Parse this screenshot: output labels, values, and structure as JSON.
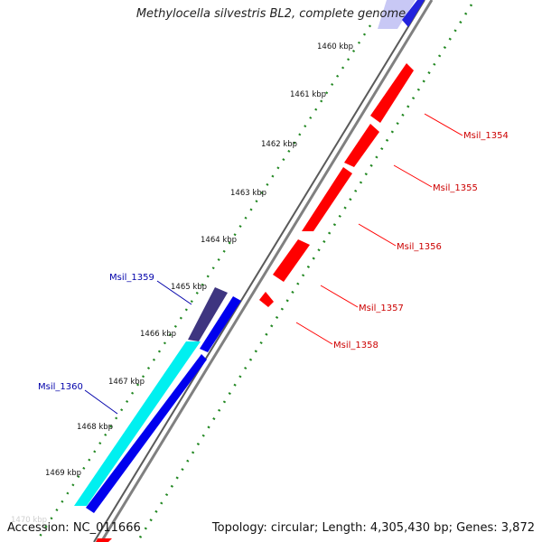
{
  "title": "Methylocella silvestris BL2, complete genome",
  "footer": {
    "accession": "Accession: NC_011666",
    "summary": "Topology: circular; Length: 4,305,430 bp; Genes: 3,872"
  },
  "colors": {
    "forward": "#ff0000",
    "reverse": "#0000ee",
    "highlight_dark": "#3e3580",
    "highlight_cyan": "#00f0f0",
    "backbone": "#808080",
    "ticks": "#228822",
    "label_forward": "#cc0000",
    "label_reverse": "#0000aa"
  },
  "ticks": [
    "1460 kbp",
    "1461 kbp",
    "1462 kbp",
    "1463 kbp",
    "1464 kbp",
    "1465 kbp",
    "1466 kbp",
    "1467 kbp",
    "1468 kbp",
    "1469 kbp",
    "1470 kbp"
  ],
  "genes": [
    {
      "id": "Msil_1354",
      "strand": "forward"
    },
    {
      "id": "Msil_1355",
      "strand": "forward"
    },
    {
      "id": "Msil_1356",
      "strand": "forward"
    },
    {
      "id": "Msil_1357",
      "strand": "forward"
    },
    {
      "id": "Msil_1358",
      "strand": "forward"
    },
    {
      "id": "Msil_1359",
      "strand": "reverse"
    },
    {
      "id": "Msil_1360",
      "strand": "reverse"
    }
  ]
}
